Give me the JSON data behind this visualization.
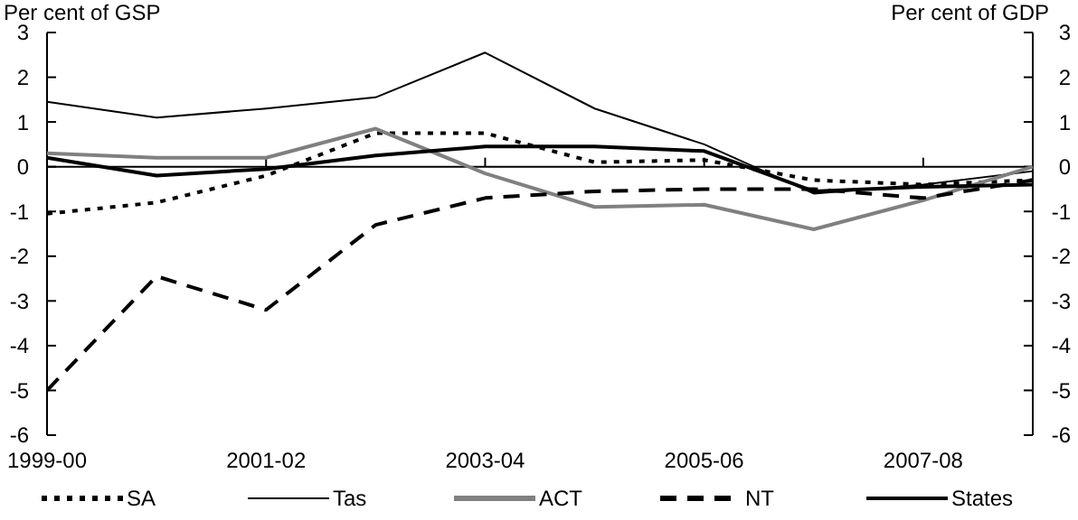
{
  "chart_data": {
    "type": "line",
    "ylabel": "Per cent of GSP",
    "y2label": "Per cent of GDP",
    "categories": [
      "1999-00",
      null,
      "2001-02",
      null,
      "2003-04",
      null,
      "2005-06",
      null,
      "2007-08",
      null
    ],
    "series": [
      {
        "name": "SA",
        "color": "#000000",
        "line_style": "dotted",
        "values": [
          -1.05,
          -0.8,
          -0.2,
          0.75,
          0.75,
          0.1,
          0.15,
          -0.3,
          -0.4,
          -0.3
        ]
      },
      {
        "name": "Tas",
        "color": "#000000",
        "line_style": "solid",
        "values": [
          1.45,
          1.1,
          1.3,
          1.55,
          2.55,
          1.3,
          0.5,
          -0.6,
          -0.4,
          -0.1
        ]
      },
      {
        "name": "ACT",
        "color": "#808080",
        "line_style": "solid",
        "values": [
          0.3,
          0.2,
          0.2,
          0.85,
          -0.15,
          -0.9,
          -0.85,
          -1.4,
          -0.75,
          0.0
        ]
      },
      {
        "name": "NT",
        "color": "#000000",
        "line_style": "dashed",
        "values": [
          -5.0,
          -2.45,
          -3.2,
          -1.3,
          -0.7,
          -0.55,
          -0.5,
          -0.5,
          -0.7,
          -0.3
        ]
      },
      {
        "name": "States",
        "color": "#000000",
        "line_style": "solid",
        "axis": "y2",
        "values": [
          0.2,
          -0.2,
          -0.05,
          0.25,
          0.45,
          0.45,
          0.35,
          -0.55,
          -0.45,
          -0.4
        ]
      }
    ],
    "ylim": [
      -6,
      3
    ],
    "yticks": [
      -6,
      -5,
      -4,
      -3,
      -2,
      -1,
      0,
      1,
      2,
      3
    ],
    "y2lim": [
      -6,
      3
    ],
    "y2ticks": [
      -6,
      -5,
      -4,
      -3,
      -2,
      -1,
      0,
      1,
      2,
      3
    ],
    "legend": "bottom"
  }
}
